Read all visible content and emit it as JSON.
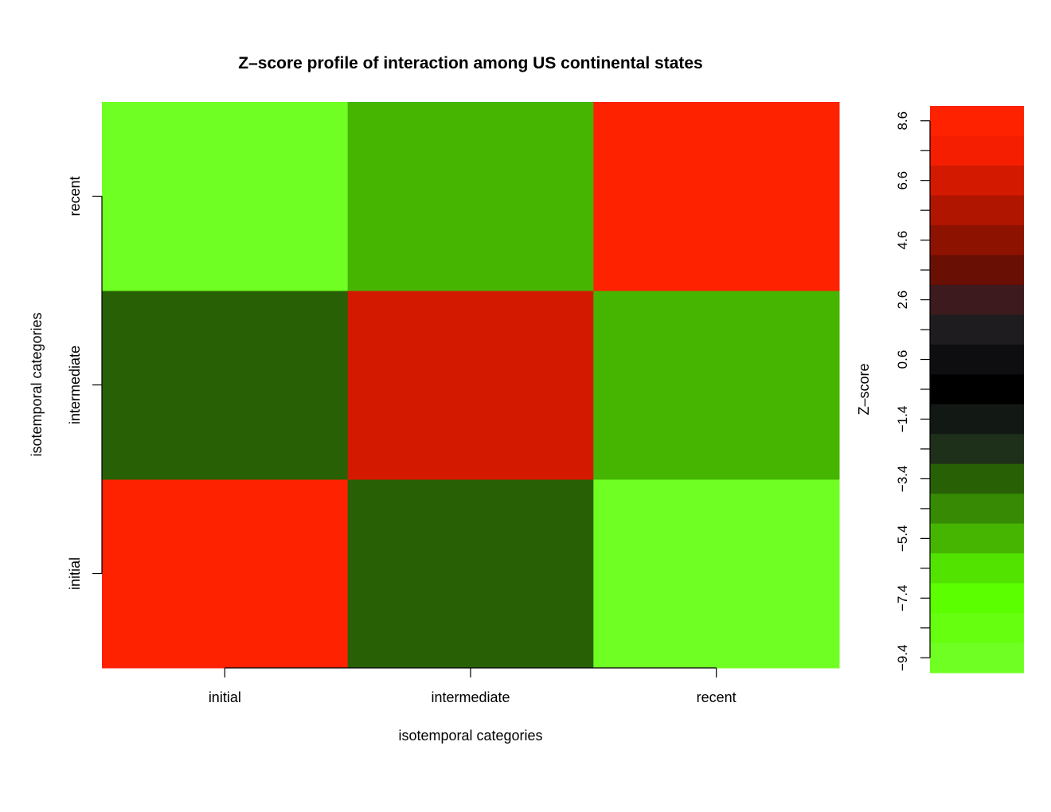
{
  "chart_data": {
    "type": "heatmap",
    "title": "Z–score profile of interaction among US continental states",
    "xlabel": "isotemporal categories",
    "ylabel": "isotemporal categories",
    "x_categories": [
      "initial",
      "intermediate",
      "recent"
    ],
    "y_categories": [
      "initial",
      "intermediate",
      "recent"
    ],
    "values": [
      [
        9.0,
        -3.6,
        -9.4
      ],
      [
        -3.6,
        7.6,
        -5.6
      ],
      [
        -9.4,
        -5.6,
        9.0
      ]
    ],
    "colorbar": {
      "label": "Z–score",
      "range": [
        -9.9,
        9.1
      ],
      "ticks": [
        "8.6",
        "6.6",
        "4.6",
        "2.6",
        "0.6",
        "−1.4",
        "−3.4",
        "−5.4",
        "−7.4",
        "−9.4"
      ],
      "tick_values": [
        8.6,
        6.6,
        4.6,
        2.6,
        0.6,
        -1.4,
        -3.4,
        -5.4,
        -7.4,
        -9.4
      ],
      "minor_tick_values": [
        7.6,
        5.6,
        3.6,
        1.6,
        -0.4,
        -2.4,
        -4.4,
        -6.4,
        -8.4
      ],
      "colors_top_to_bottom": [
        "#ff2200",
        "#f61e00",
        "#d31a00",
        "#b01500",
        "#8e1200",
        "#6a0f03",
        "#3c1a1e",
        "#1f1c20",
        "#0e0e10",
        "#000000",
        "#121813",
        "#1e2f1a",
        "#286005",
        "#368a04",
        "#46b501",
        "#52e300",
        "#5cff00",
        "#66ff10",
        "#70ff22"
      ]
    },
    "cell_colors": [
      [
        "#ff2200",
        "#286005",
        "#70ff22"
      ],
      [
        "#286005",
        "#d31a00",
        "#46b501"
      ],
      [
        "#70ff22",
        "#46b501",
        "#ff2200"
      ]
    ]
  }
}
